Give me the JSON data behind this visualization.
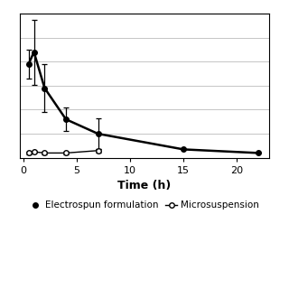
{
  "title": "",
  "xlabel": "Time (h)",
  "ylabel": "",
  "background_color": "#ffffff",
  "electrospun": {
    "x": [
      0.5,
      1,
      2,
      4,
      7,
      15,
      22
    ],
    "y": [
      0.78,
      0.88,
      0.58,
      0.32,
      0.2,
      0.07,
      0.04
    ],
    "yerr": [
      0.12,
      0.27,
      0.2,
      0.1,
      0.13,
      0.0,
      0.0
    ],
    "color": "#000000",
    "marker": "o",
    "markersize": 4,
    "linewidth": 1.8,
    "label": "Electrospun formulation"
  },
  "microsuspension": {
    "x": [
      0.5,
      1,
      2,
      4,
      7
    ],
    "y": [
      0.04,
      0.05,
      0.04,
      0.04,
      0.06
    ],
    "yerr": [
      0.01,
      0.01,
      0.01,
      0.01,
      0.015
    ],
    "color": "#000000",
    "marker": "o",
    "markersize": 4,
    "linewidth": 1.0,
    "label": "Microsuspension"
  },
  "ylim": [
    0,
    1.2
  ],
  "xlim": [
    -0.3,
    23
  ],
  "xticks": [
    0,
    5,
    10,
    15,
    20
  ],
  "yticks": [
    0,
    0.2,
    0.4,
    0.6,
    0.8,
    1.0
  ],
  "grid_color": "#bbbbbb",
  "legend_fontsize": 7.5,
  "axis_label_fontsize": 9,
  "tick_fontsize": 8
}
